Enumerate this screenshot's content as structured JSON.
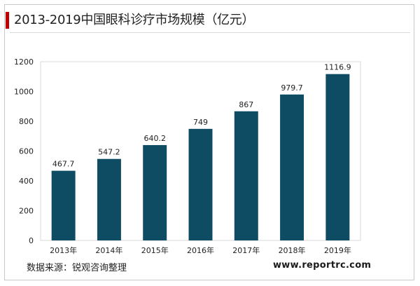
{
  "title": "2013-2019中国眼科诊疗市场规模（亿元）",
  "source": "数据来源：锐观咨询整理",
  "website": "www.reportrc.com",
  "colors": {
    "bar": "#0e4c64",
    "accent": "#c00000"
  },
  "chart_data": {
    "type": "bar",
    "title": "2013-2019中国眼科诊疗市场规模（亿元）",
    "xlabel": "",
    "ylabel": "",
    "categories": [
      "2013年",
      "2014年",
      "2015年",
      "2016年",
      "2017年",
      "2018年",
      "2019年"
    ],
    "values": [
      467.7,
      547.2,
      640.2,
      749,
      867,
      979.7,
      1116.9
    ],
    "value_labels": [
      "467.7",
      "547.2",
      "640.2",
      "749",
      "867",
      "979.7",
      "1116.9"
    ],
    "ylim": [
      0,
      1200
    ],
    "yticks": [
      0,
      200,
      400,
      600,
      800,
      1000,
      1200
    ],
    "grid": false,
    "legend": "none"
  }
}
